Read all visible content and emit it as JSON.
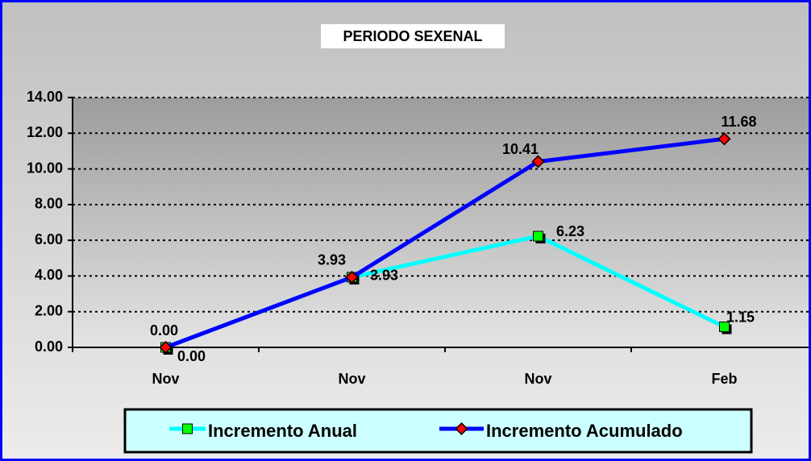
{
  "chart_data": {
    "type": "line",
    "title": "PERIODO SEXENAL",
    "categories": [
      "Nov",
      "Nov",
      "Nov",
      "Feb"
    ],
    "series": [
      {
        "name": "Incremento Anual",
        "color": "#00ffff",
        "marker_color": "#00ff00",
        "values": [
          0,
          3.93,
          6.23,
          1.15
        ],
        "value_labels": [
          "0.00",
          "3.93",
          "6.23",
          "1.15"
        ]
      },
      {
        "name": "Incremento Acumulado",
        "color": "#0000ff",
        "marker_color": "#ff0000",
        "values": [
          0,
          3.93,
          10.41,
          11.68
        ],
        "value_labels": [
          "0.00",
          "3.93",
          "10.41",
          "11.68"
        ]
      }
    ],
    "ylim": [
      0,
      14
    ],
    "yticks": [
      {
        "value": 0,
        "label": "0.00"
      },
      {
        "value": 2,
        "label": "2.00"
      },
      {
        "value": 4,
        "label": "4.00"
      },
      {
        "value": 6,
        "label": "6.00"
      },
      {
        "value": 8,
        "label": "8.00"
      },
      {
        "value": 10,
        "label": "10.00"
      },
      {
        "value": 12,
        "label": "12.00"
      },
      {
        "value": 14,
        "label": "14.00"
      }
    ],
    "grid": true,
    "legend": "bottom"
  }
}
